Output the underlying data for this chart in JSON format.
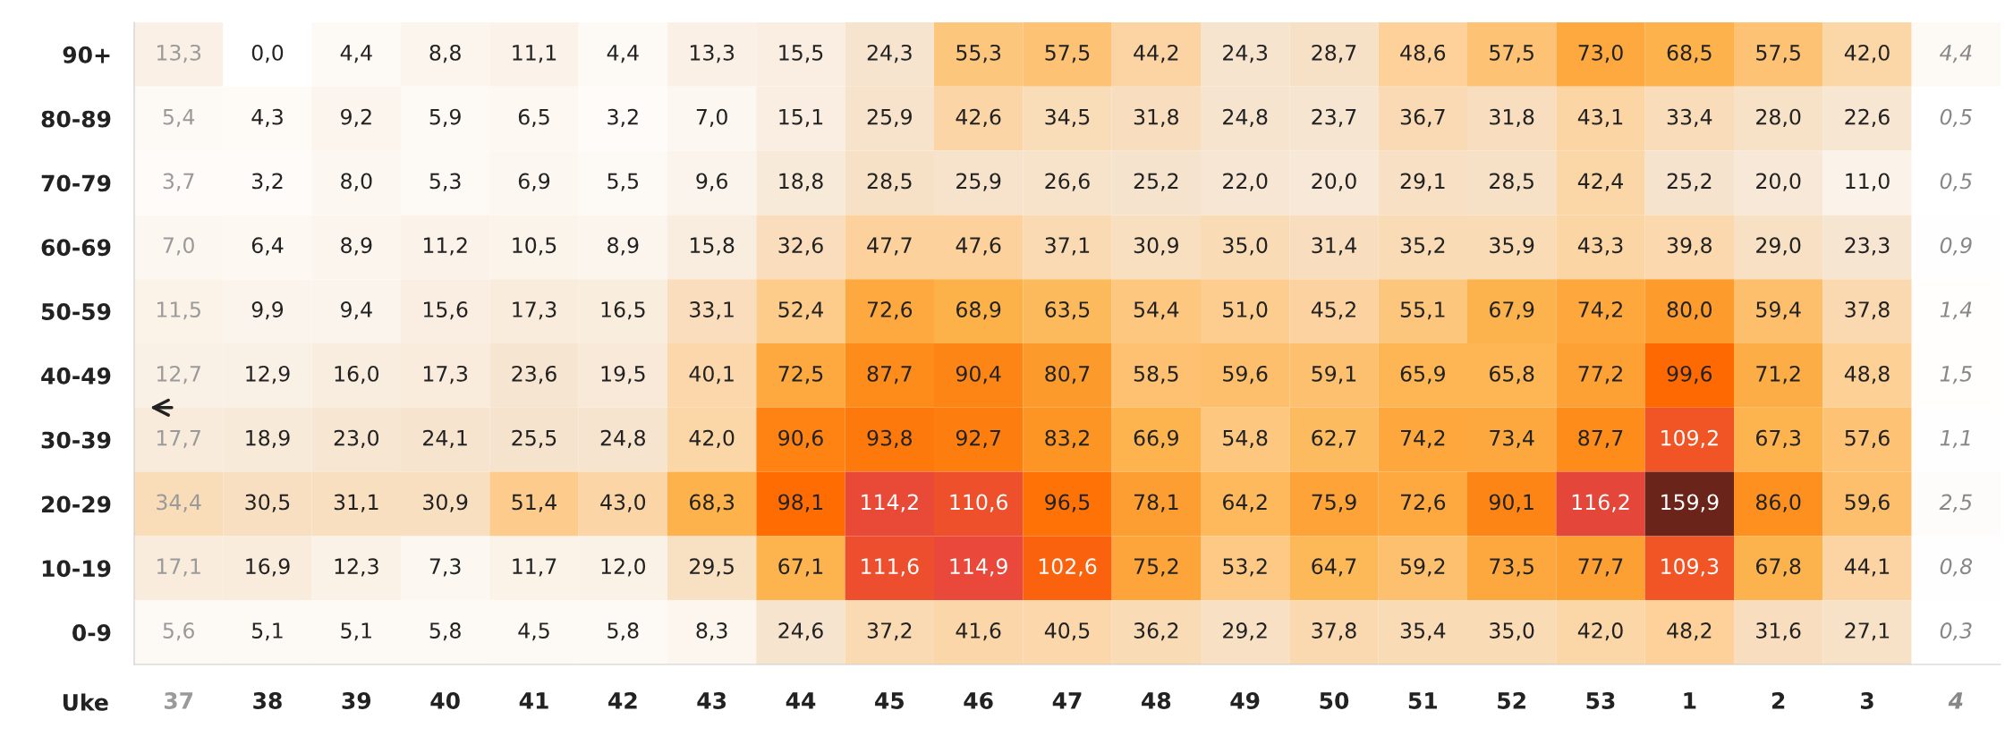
{
  "chart_data": {
    "type": "heatmap",
    "xlabel": "Uke",
    "categories": [
      "37",
      "38",
      "39",
      "40",
      "41",
      "42",
      "43",
      "44",
      "45",
      "46",
      "47",
      "48",
      "49",
      "50",
      "51",
      "52",
      "53",
      "1",
      "2",
      "3",
      "4"
    ],
    "y_categories": [
      "90+",
      "80-89",
      "70-79",
      "60-69",
      "50-59",
      "40-49",
      "30-39",
      "20-29",
      "10-19",
      "0-9"
    ],
    "cells": [
      [
        13.3,
        0.0,
        4.4,
        8.8,
        11.1,
        4.4,
        13.3,
        15.5,
        24.3,
        55.3,
        57.5,
        44.2,
        24.3,
        28.7,
        48.6,
        57.5,
        73.0,
        68.5,
        57.5,
        42.0,
        4.4
      ],
      [
        5.4,
        4.3,
        9.2,
        5.9,
        6.5,
        3.2,
        7.0,
        15.1,
        25.9,
        42.6,
        34.5,
        31.8,
        24.8,
        23.7,
        36.7,
        31.8,
        43.1,
        33.4,
        28.0,
        22.6,
        0.5
      ],
      [
        3.7,
        3.2,
        8.0,
        5.3,
        6.9,
        5.5,
        9.6,
        18.8,
        28.5,
        25.9,
        26.6,
        25.2,
        22.0,
        20.0,
        29.1,
        28.5,
        42.4,
        25.2,
        20.0,
        11.0,
        0.5
      ],
      [
        7.0,
        6.4,
        8.9,
        11.2,
        10.5,
        8.9,
        15.8,
        32.6,
        47.7,
        47.6,
        37.1,
        30.9,
        35.0,
        31.4,
        35.2,
        35.9,
        43.3,
        39.8,
        29.0,
        23.3,
        0.9
      ],
      [
        11.5,
        9.9,
        9.4,
        15.6,
        17.3,
        16.5,
        33.1,
        52.4,
        72.6,
        68.9,
        63.5,
        54.4,
        51.0,
        45.2,
        55.1,
        67.9,
        74.2,
        80.0,
        59.4,
        37.8,
        1.4
      ],
      [
        12.7,
        12.9,
        16.0,
        17.3,
        23.6,
        19.5,
        40.1,
        72.5,
        87.7,
        90.4,
        80.7,
        58.5,
        59.6,
        59.1,
        65.9,
        65.8,
        77.2,
        99.6,
        71.2,
        48.8,
        1.5
      ],
      [
        17.7,
        18.9,
        23.0,
        24.1,
        25.5,
        24.8,
        42.0,
        90.6,
        93.8,
        92.7,
        83.2,
        66.9,
        54.8,
        62.7,
        74.2,
        73.4,
        87.7,
        109.2,
        67.3,
        57.6,
        1.1
      ],
      [
        34.4,
        30.5,
        31.1,
        30.9,
        51.4,
        43.0,
        68.3,
        98.1,
        114.2,
        110.6,
        96.5,
        78.1,
        64.2,
        75.9,
        72.6,
        90.1,
        116.2,
        159.9,
        86.0,
        59.6,
        2.5
      ],
      [
        17.1,
        16.9,
        12.3,
        7.3,
        11.7,
        12.0,
        29.5,
        67.1,
        111.6,
        114.9,
        102.6,
        75.2,
        53.2,
        64.7,
        59.2,
        73.5,
        77.7,
        109.3,
        67.8,
        44.1,
        0.8
      ],
      [
        5.6,
        5.1,
        5.1,
        5.8,
        4.5,
        5.8,
        8.3,
        24.6,
        37.2,
        41.6,
        40.5,
        36.2,
        29.2,
        37.8,
        35.4,
        35.0,
        42.0,
        48.2,
        31.6,
        27.1,
        0.3
      ]
    ],
    "cell_labels": [
      [
        "13,3",
        "0,0",
        "4,4",
        "8,8",
        "11,1",
        "4,4",
        "13,3",
        "15,5",
        "24,3",
        "55,3",
        "57,5",
        "44,2",
        "24,3",
        "28,7",
        "48,6",
        "57,5",
        "73,0",
        "68,5",
        "57,5",
        "42,0",
        "4,4"
      ],
      [
        "5,4",
        "4,3",
        "9,2",
        "5,9",
        "6,5",
        "3,2",
        "7,0",
        "15,1",
        "25,9",
        "42,6",
        "34,5",
        "31,8",
        "24,8",
        "23,7",
        "36,7",
        "31,8",
        "43,1",
        "33,4",
        "28,0",
        "22,6",
        "0,5"
      ],
      [
        "3,7",
        "3,2",
        "8,0",
        "5,3",
        "6,9",
        "5,5",
        "9,6",
        "18,8",
        "28,5",
        "25,9",
        "26,6",
        "25,2",
        "22,0",
        "20,0",
        "29,1",
        "28,5",
        "42,4",
        "25,2",
        "20,0",
        "11,0",
        "0,5"
      ],
      [
        "7,0",
        "6,4",
        "8,9",
        "11,2",
        "10,5",
        "8,9",
        "15,8",
        "32,6",
        "47,7",
        "47,6",
        "37,1",
        "30,9",
        "35,0",
        "31,4",
        "35,2",
        "35,9",
        "43,3",
        "39,8",
        "29,0",
        "23,3",
        "0,9"
      ],
      [
        "11,5",
        "9,9",
        "9,4",
        "15,6",
        "17,3",
        "16,5",
        "33,1",
        "52,4",
        "72,6",
        "68,9",
        "63,5",
        "54,4",
        "51,0",
        "45,2",
        "55,1",
        "67,9",
        "74,2",
        "80,0",
        "59,4",
        "37,8",
        "1,4"
      ],
      [
        "12,7",
        "12,9",
        "16,0",
        "17,3",
        "23,6",
        "19,5",
        "40,1",
        "72,5",
        "87,7",
        "90,4",
        "80,7",
        "58,5",
        "59,6",
        "59,1",
        "65,9",
        "65,8",
        "77,2",
        "99,6",
        "71,2",
        "48,8",
        "1,5"
      ],
      [
        "17,7",
        "18,9",
        "23,0",
        "24,1",
        "25,5",
        "24,8",
        "42,0",
        "90,6",
        "93,8",
        "92,7",
        "83,2",
        "66,9",
        "54,8",
        "62,7",
        "74,2",
        "73,4",
        "87,7",
        "109,2",
        "67,3",
        "57,6",
        "1,1"
      ],
      [
        "34,4",
        "30,5",
        "31,1",
        "30,9",
        "51,4",
        "43,0",
        "68,3",
        "98,1",
        "114,2",
        "110,6",
        "96,5",
        "78,1",
        "64,2",
        "75,9",
        "72,6",
        "90,1",
        "116,2",
        "159,9",
        "86,0",
        "59,6",
        "2,5"
      ],
      [
        "17,1",
        "16,9",
        "12,3",
        "7,3",
        "11,7",
        "12,0",
        "29,5",
        "67,1",
        "111,6",
        "114,9",
        "102,6",
        "75,2",
        "53,2",
        "64,7",
        "59,2",
        "73,5",
        "77,7",
        "109,3",
        "67,8",
        "44,1",
        "0,8"
      ],
      [
        "5,6",
        "5,1",
        "5,1",
        "5,8",
        "4,5",
        "5,8",
        "8,3",
        "24,6",
        "37,2",
        "41,6",
        "40,5",
        "36,2",
        "29,2",
        "37,8",
        "35,4",
        "35,0",
        "42,0",
        "48,2",
        "31,6",
        "27,1",
        "0,3"
      ]
    ]
  }
}
